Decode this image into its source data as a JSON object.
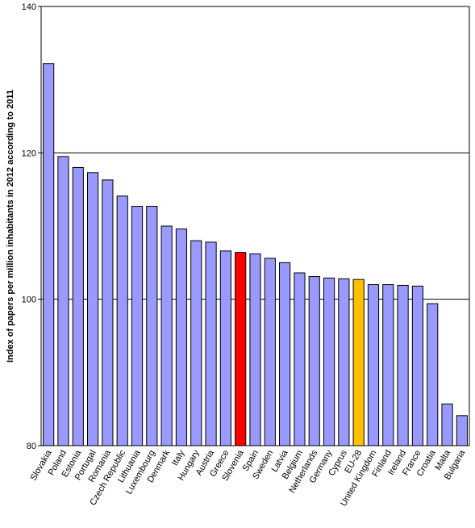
{
  "chart_data": {
    "type": "bar",
    "title": "",
    "xlabel": "",
    "ylabel": "Index of papers per million inhabitants in 2012 according to 2011",
    "ylim": [
      80,
      140
    ],
    "yticks": [
      80,
      100,
      120,
      140
    ],
    "grid": true,
    "legend": "none",
    "categories": [
      "Slovakia",
      "Poland",
      "Estonia",
      "Portugal",
      "Romania",
      "Czech Republic",
      "Lithuania",
      "Luxembourg",
      "Denmark",
      "Italy",
      "Hungary",
      "Austria",
      "Greece",
      "Slovenia",
      "Spain",
      "Sweden",
      "Latvia",
      "Belgium",
      "Netherlands",
      "Germany",
      "Cyprus",
      "EU-28",
      "United Kingdom",
      "Finland",
      "Ireland",
      "France",
      "Croatia",
      "Malta",
      "Bulgaria"
    ],
    "values": [
      132.2,
      119.5,
      118.0,
      117.3,
      116.3,
      114.1,
      112.7,
      112.7,
      110.0,
      109.6,
      108.0,
      107.8,
      106.6,
      106.4,
      106.2,
      105.6,
      105.0,
      103.6,
      103.1,
      102.9,
      102.8,
      102.7,
      102.0,
      102.0,
      101.9,
      101.8,
      99.4,
      85.7,
      84.1
    ],
    "colors": {
      "default": "#9999ff",
      "highlight": "#ff0000",
      "average": "#ffc000",
      "border": "#000000",
      "grid": "#000000"
    },
    "highlight_category": "Slovenia",
    "average_category": "EU-28"
  }
}
